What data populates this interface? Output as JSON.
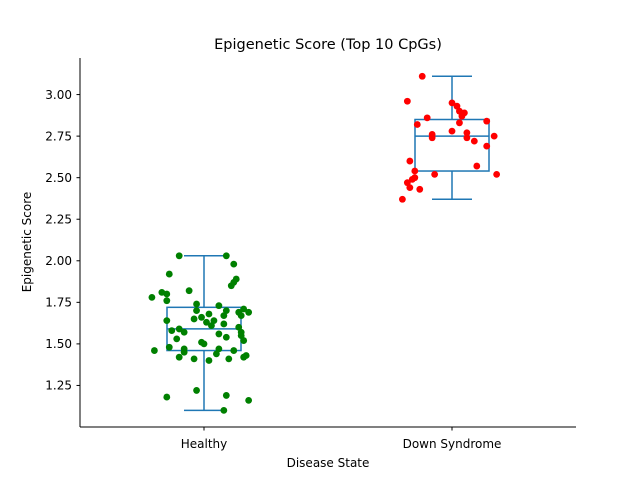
{
  "chart_data": {
    "type": "box",
    "title": "Epigenetic Score (Top 10 CpGs)",
    "xlabel": "Disease State",
    "ylabel": "Epigenetic Score",
    "categories": [
      "Healthy",
      "Down Syndrome"
    ],
    "ylim": [
      1.0,
      3.22
    ],
    "yticks": [
      "1.25",
      "1.50",
      "1.75",
      "2.00",
      "2.25",
      "2.50",
      "2.75",
      "3.00"
    ],
    "grid": false,
    "box_color": "#1f77b4",
    "boxes": [
      {
        "category": "Healthy",
        "whisker_low": 1.1,
        "q1": 1.46,
        "median": 1.59,
        "q3": 1.72,
        "whisker_high": 2.03
      },
      {
        "category": "Down Syndrome",
        "whisker_low": 2.37,
        "q1": 2.54,
        "median": 2.75,
        "q3": 2.85,
        "whisker_high": 3.11
      }
    ],
    "series": [
      {
        "category": "Healthy",
        "color": "#008000",
        "values": [
          2.03,
          2.03,
          1.98,
          1.92,
          1.89,
          1.87,
          1.85,
          1.82,
          1.81,
          1.8,
          1.78,
          1.76,
          1.74,
          1.73,
          1.71,
          1.7,
          1.7,
          1.69,
          1.69,
          1.68,
          1.67,
          1.67,
          1.66,
          1.65,
          1.64,
          1.64,
          1.63,
          1.62,
          1.61,
          1.6,
          1.59,
          1.58,
          1.57,
          1.57,
          1.56,
          1.55,
          1.54,
          1.53,
          1.52,
          1.51,
          1.5,
          1.48,
          1.47,
          1.47,
          1.46,
          1.46,
          1.45,
          1.44,
          1.43,
          1.42,
          1.42,
          1.41,
          1.41,
          1.4,
          1.22,
          1.19,
          1.18,
          1.16,
          1.1
        ],
        "jitter": [
          -0.1,
          0.09,
          0.12,
          -0.14,
          0.13,
          0.12,
          0.11,
          -0.06,
          -0.17,
          -0.15,
          -0.21,
          -0.15,
          -0.03,
          0.06,
          0.16,
          -0.03,
          0.09,
          0.14,
          0.18,
          0.02,
          0.08,
          0.15,
          -0.01,
          -0.04,
          0.04,
          -0.15,
          0.01,
          0.08,
          0.03,
          0.14,
          -0.1,
          -0.13,
          0.15,
          -0.08,
          0.06,
          0.15,
          0.09,
          -0.11,
          0.16,
          -0.01,
          0.0,
          -0.14,
          0.06,
          -0.08,
          0.12,
          -0.2,
          -0.08,
          0.05,
          0.17,
          -0.1,
          0.16,
          -0.04,
          0.1,
          0.02,
          -0.03,
          0.09,
          -0.15,
          0.18,
          0.08
        ]
      },
      {
        "category": "Down Syndrome",
        "color": "#ff0000",
        "values": [
          3.11,
          2.96,
          2.95,
          2.93,
          2.9,
          2.89,
          2.87,
          2.86,
          2.84,
          2.83,
          2.82,
          2.78,
          2.77,
          2.76,
          2.75,
          2.74,
          2.74,
          2.72,
          2.69,
          2.6,
          2.57,
          2.54,
          2.52,
          2.52,
          2.5,
          2.49,
          2.47,
          2.44,
          2.43,
          2.37
        ],
        "jitter": [
          -0.12,
          -0.18,
          0.0,
          0.02,
          0.03,
          0.05,
          0.04,
          -0.1,
          0.14,
          0.03,
          -0.14,
          0.0,
          0.06,
          -0.08,
          0.17,
          0.06,
          -0.08,
          0.09,
          0.14,
          -0.17,
          0.1,
          -0.15,
          -0.07,
          0.18,
          -0.15,
          -0.16,
          -0.18,
          -0.17,
          -0.13,
          -0.2
        ]
      }
    ]
  }
}
